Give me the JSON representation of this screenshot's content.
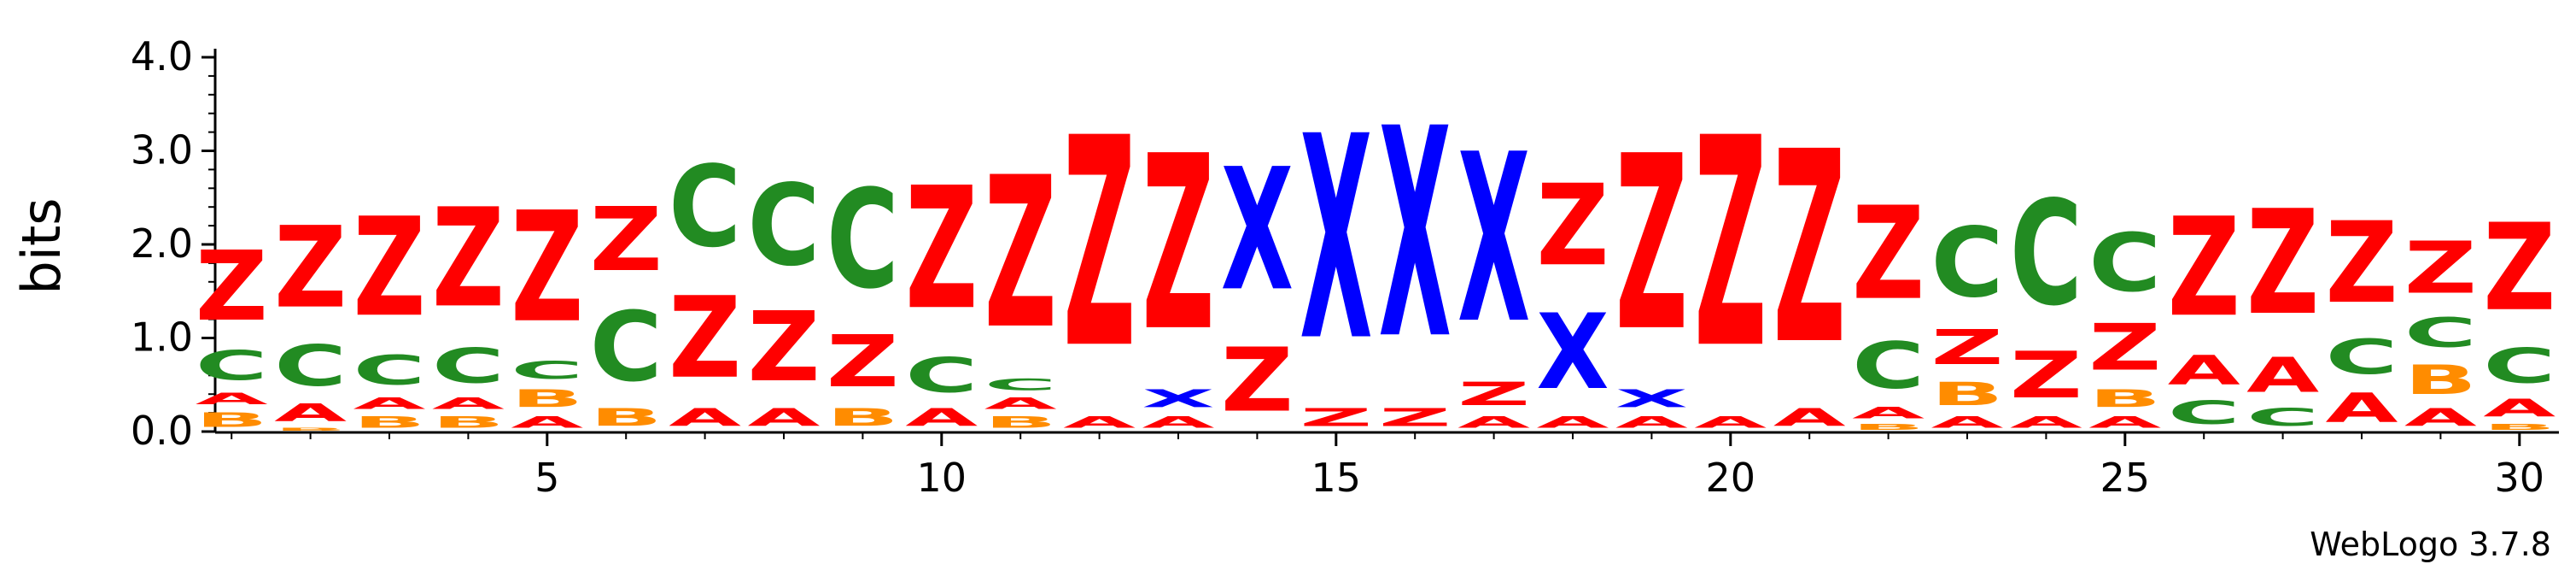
{
  "chart_data": {
    "type": "sequence-logo",
    "ylabel": "bits",
    "credit": "WebLogo 3.7.8",
    "ylim": [
      0,
      4.0
    ],
    "y_ticks": [
      "0.0",
      "1.0",
      "2.0",
      "3.0",
      "4.0"
    ],
    "x_tick_labels": [
      "5",
      "10",
      "15",
      "20",
      "25",
      "30"
    ],
    "x_ticks": [
      5,
      10,
      15,
      20,
      25,
      30
    ],
    "colors": {
      "Z": "#ff0000",
      "A": "#ff0000",
      "C": "#228b22",
      "X": "#0000ff",
      "B": "#ff8c00"
    },
    "positions": [
      {
        "pos": 1,
        "stack": [
          [
            "B",
            0.25
          ],
          [
            "A",
            0.2
          ],
          [
            "C",
            0.5
          ],
          [
            "Z",
            1.2
          ]
        ]
      },
      {
        "pos": 2,
        "stack": [
          [
            "B",
            0.05
          ],
          [
            "A",
            0.3
          ],
          [
            "C",
            0.7
          ],
          [
            "Z",
            1.4
          ]
        ]
      },
      {
        "pos": 3,
        "stack": [
          [
            "B",
            0.2
          ],
          [
            "A",
            0.2
          ],
          [
            "C",
            0.5
          ],
          [
            "Z",
            1.7
          ]
        ]
      },
      {
        "pos": 4,
        "stack": [
          [
            "B",
            0.2
          ],
          [
            "A",
            0.2
          ],
          [
            "C",
            0.6
          ],
          [
            "Z",
            1.7
          ]
        ]
      },
      {
        "pos": 5,
        "stack": [
          [
            "A",
            0.2
          ],
          [
            "B",
            0.3
          ],
          [
            "C",
            0.3
          ],
          [
            "Z",
            1.9
          ]
        ]
      },
      {
        "pos": 6,
        "stack": [
          [
            "B",
            0.3
          ],
          [
            "C",
            1.2
          ],
          [
            "Z",
            1.1
          ]
        ]
      },
      {
        "pos": 7,
        "stack": [
          [
            "A",
            0.3
          ],
          [
            "Z",
            1.4
          ],
          [
            "C",
            1.4
          ]
        ]
      },
      {
        "pos": 8,
        "stack": [
          [
            "A",
            0.3
          ],
          [
            "Z",
            1.2
          ],
          [
            "C",
            1.4
          ]
        ]
      },
      {
        "pos": 9,
        "stack": [
          [
            "B",
            0.3
          ],
          [
            "Z",
            0.9
          ],
          [
            "C",
            1.7
          ]
        ]
      },
      {
        "pos": 10,
        "stack": [
          [
            "A",
            0.3
          ],
          [
            "C",
            0.6
          ],
          [
            "Z",
            2.1
          ]
        ]
      },
      {
        "pos": 11,
        "stack": [
          [
            "B",
            0.2
          ],
          [
            "A",
            0.2
          ],
          [
            "C",
            0.2
          ],
          [
            "Z",
            2.6
          ]
        ]
      },
      {
        "pos": 12,
        "stack": [
          [
            "A",
            0.2
          ],
          [
            "Z",
            3.6
          ]
        ]
      },
      {
        "pos": 13,
        "stack": [
          [
            "A",
            0.2
          ],
          [
            "X",
            0.3
          ],
          [
            "Z",
            3.0
          ]
        ]
      },
      {
        "pos": 14,
        "stack": [
          [
            "Z",
            1.1
          ],
          [
            "X",
            2.1
          ]
        ]
      },
      {
        "pos": 15,
        "stack": [
          [
            "Z",
            0.3
          ],
          [
            "X",
            3.5
          ]
        ]
      },
      {
        "pos": 16,
        "stack": [
          [
            "Z",
            0.3
          ],
          [
            "X",
            3.6
          ]
        ]
      },
      {
        "pos": 17,
        "stack": [
          [
            "A",
            0.2
          ],
          [
            "Z",
            0.4
          ],
          [
            "X",
            2.9
          ]
        ]
      },
      {
        "pos": 18,
        "stack": [
          [
            "A",
            0.2
          ],
          [
            "X",
            1.3
          ],
          [
            "Z",
            1.4
          ]
        ]
      },
      {
        "pos": 19,
        "stack": [
          [
            "A",
            0.2
          ],
          [
            "X",
            0.3
          ],
          [
            "Z",
            3.0
          ]
        ]
      },
      {
        "pos": 20,
        "stack": [
          [
            "A",
            0.2
          ],
          [
            "Z",
            3.6
          ]
        ]
      },
      {
        "pos": 21,
        "stack": [
          [
            "A",
            0.3
          ],
          [
            "Z",
            3.3
          ]
        ]
      },
      {
        "pos": 22,
        "stack": [
          [
            "B",
            0.1
          ],
          [
            "A",
            0.2
          ],
          [
            "C",
            0.8
          ],
          [
            "Z",
            1.6
          ]
        ]
      },
      {
        "pos": 23,
        "stack": [
          [
            "A",
            0.2
          ],
          [
            "B",
            0.4
          ],
          [
            "Z",
            0.6
          ],
          [
            "C",
            1.2
          ]
        ]
      },
      {
        "pos": 24,
        "stack": [
          [
            "A",
            0.2
          ],
          [
            "Z",
            0.8
          ],
          [
            "C",
            1.8
          ]
        ]
      },
      {
        "pos": 25,
        "stack": [
          [
            "A",
            0.2
          ],
          [
            "B",
            0.3
          ],
          [
            "Z",
            0.8
          ],
          [
            "C",
            1.0
          ]
        ]
      },
      {
        "pos": 26,
        "stack": [
          [
            "C",
            0.4
          ],
          [
            "A",
            0.5
          ],
          [
            "Z",
            1.7
          ]
        ]
      },
      {
        "pos": 27,
        "stack": [
          [
            "C",
            0.3
          ],
          [
            "A",
            0.6
          ],
          [
            "Z",
            1.8
          ]
        ]
      },
      {
        "pos": 28,
        "stack": [
          [
            "A",
            0.5
          ],
          [
            "C",
            0.6
          ],
          [
            "Z",
            1.4
          ]
        ]
      },
      {
        "pos": 29,
        "stack": [
          [
            "A",
            0.3
          ],
          [
            "B",
            0.5
          ],
          [
            "C",
            0.5
          ],
          [
            "Z",
            0.9
          ]
        ]
      },
      {
        "pos": 30,
        "stack": [
          [
            "B",
            0.1
          ],
          [
            "A",
            0.3
          ],
          [
            "C",
            0.6
          ],
          [
            "Z",
            1.5
          ]
        ]
      }
    ]
  }
}
